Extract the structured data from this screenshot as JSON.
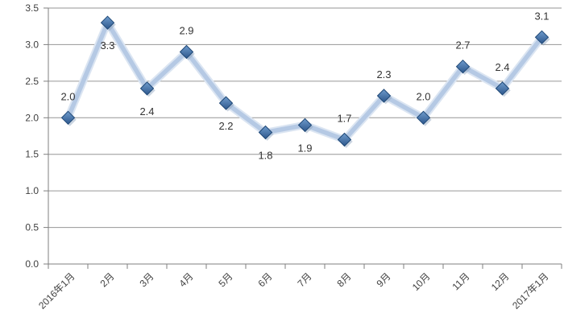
{
  "chart_data": {
    "type": "line",
    "title": "",
    "categories": [
      "2016年1月",
      "2月",
      "3月",
      "4月",
      "5月",
      "6月",
      "7月",
      "8月",
      "9月",
      "10月",
      "11月",
      "12月",
      "2017年1月"
    ],
    "series": [
      {
        "name": "",
        "values": [
          2.0,
          3.3,
          2.4,
          2.9,
          2.2,
          1.8,
          1.9,
          1.7,
          2.3,
          2.0,
          2.7,
          2.4,
          3.1
        ]
      }
    ],
    "data_labels": [
      "2.0",
      "3.3",
      "2.4",
      "2.9",
      "2.2",
      "1.8",
      "1.9",
      "1.7",
      "2.3",
      "2.0",
      "2.7",
      "2.4",
      "3.1"
    ],
    "label_positions": [
      "above",
      "below",
      "below",
      "above",
      "below",
      "below",
      "below",
      "above",
      "above",
      "above",
      "above",
      "above",
      "above"
    ],
    "xlabel": "",
    "ylabel": "",
    "ylim": [
      0.0,
      3.5
    ],
    "ytick_step": 0.5,
    "ytick_labels": [
      "0.0",
      "0.5",
      "1.0",
      "1.5",
      "2.0",
      "2.5",
      "3.0",
      "3.5"
    ],
    "grid": true,
    "legend_position": "none",
    "marker_shape": "diamond",
    "colors": {
      "line_core": "#b5c9e4",
      "line_halo": "#dbe5f2",
      "marker_top": "#6f9ccd",
      "marker_bottom": "#2d578c",
      "marker_border": "#1f4876",
      "marker_shadow": "#8ba1bd",
      "gridline": "#969696",
      "axis": "#7f7f7f",
      "tick_label": "#3f3f3f",
      "data_label": "#333333",
      "background": "#ffffff"
    }
  }
}
